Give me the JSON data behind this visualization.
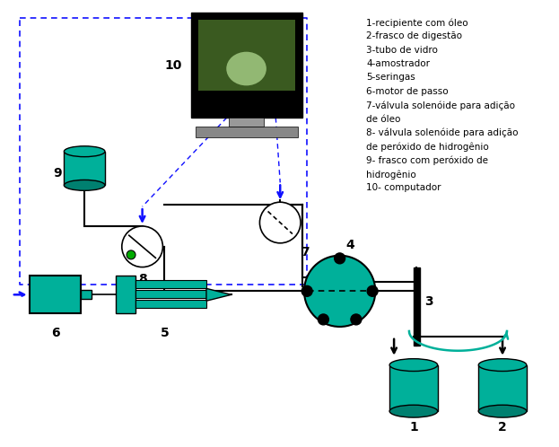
{
  "teal": "#00b09a",
  "dark_teal": "#008070",
  "blue": "#1010ff",
  "black": "#000000",
  "green_dot": "#00aa00",
  "bg": "#ffffff",
  "monitor_bg": "#000000",
  "monitor_screen": "#3a5a20",
  "monitor_screen2": "#5a8a30",
  "monitor_glow": "#b0d890",
  "gray": "#888888",
  "legend": [
    "1-recipiente com óleo",
    "2-frasco de digestão",
    "3-tubo de vidro",
    "4-amostrador",
    "5-seringas",
    "6-motor de passo",
    "7-válvula solenóide para adição",
    "de óleo",
    "8- válvula solenóide para adição",
    "de peróxido de hidrogênio",
    "9- frasco com peróxido de",
    "hidrogênio",
    "10- computador"
  ]
}
